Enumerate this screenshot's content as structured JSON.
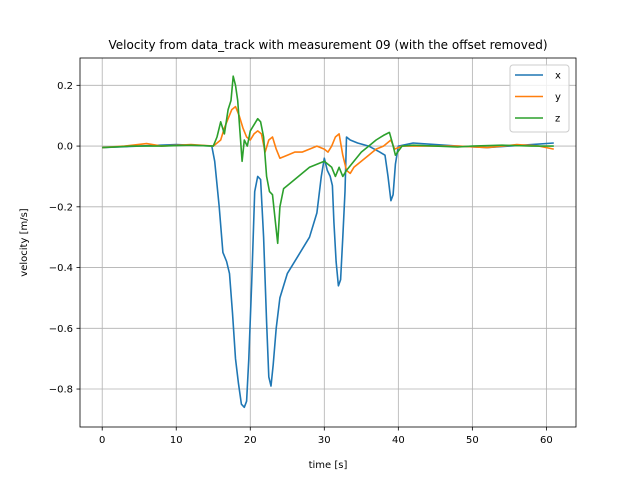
{
  "chart_data": {
    "type": "line",
    "title": "Velocity from data_track with measurement 09 (with the offset removed)",
    "xlabel": "time [s]",
    "ylabel": "velocity [m/s]",
    "xlim": [
      -3,
      64
    ],
    "ylim": [
      -0.925,
      0.29
    ],
    "xticks": [
      0,
      10,
      20,
      30,
      40,
      50,
      60
    ],
    "yticks": [
      -0.8,
      -0.6,
      -0.4,
      -0.2,
      0.0,
      0.2
    ],
    "xtick_labels": [
      "0",
      "10",
      "20",
      "30",
      "40",
      "50",
      "60"
    ],
    "ytick_labels": [
      "−0.8",
      "−0.6",
      "−0.4",
      "−0.2",
      "0.0",
      "0.2"
    ],
    "grid": true,
    "legend_position": "top-right",
    "series": [
      {
        "name": "x",
        "color": "#1f77b4",
        "points": [
          [
            0,
            -0.005
          ],
          [
            5,
            0.0
          ],
          [
            10,
            0.005
          ],
          [
            14.8,
            0.0
          ],
          [
            15.2,
            -0.05
          ],
          [
            15.8,
            -0.2
          ],
          [
            16.3,
            -0.35
          ],
          [
            16.8,
            -0.38
          ],
          [
            17.2,
            -0.42
          ],
          [
            17.6,
            -0.55
          ],
          [
            18.0,
            -0.7
          ],
          [
            18.4,
            -0.78
          ],
          [
            18.8,
            -0.85
          ],
          [
            19.2,
            -0.86
          ],
          [
            19.5,
            -0.84
          ],
          [
            19.8,
            -0.7
          ],
          [
            20.2,
            -0.45
          ],
          [
            20.6,
            -0.15
          ],
          [
            21.0,
            -0.1
          ],
          [
            21.4,
            -0.11
          ],
          [
            21.8,
            -0.3
          ],
          [
            22.2,
            -0.58
          ],
          [
            22.5,
            -0.76
          ],
          [
            22.8,
            -0.79
          ],
          [
            23.1,
            -0.72
          ],
          [
            23.5,
            -0.6
          ],
          [
            24.0,
            -0.5
          ],
          [
            25.0,
            -0.42
          ],
          [
            26.5,
            -0.36
          ],
          [
            28.0,
            -0.3
          ],
          [
            29.0,
            -0.22
          ],
          [
            29.6,
            -0.1
          ],
          [
            30.0,
            -0.04
          ],
          [
            30.4,
            -0.08
          ],
          [
            30.8,
            -0.1
          ],
          [
            31.1,
            -0.13
          ],
          [
            31.3,
            -0.25
          ],
          [
            31.6,
            -0.38
          ],
          [
            31.9,
            -0.46
          ],
          [
            32.2,
            -0.44
          ],
          [
            32.5,
            -0.3
          ],
          [
            32.8,
            -0.15
          ],
          [
            33.0,
            0.03
          ],
          [
            33.5,
            0.02
          ],
          [
            34.5,
            0.01
          ],
          [
            36.0,
            0.0
          ],
          [
            37.5,
            -0.02
          ],
          [
            38.2,
            -0.03
          ],
          [
            38.6,
            -0.1
          ],
          [
            39.0,
            -0.18
          ],
          [
            39.3,
            -0.16
          ],
          [
            39.6,
            -0.06
          ],
          [
            40.0,
            0.0
          ],
          [
            42.0,
            0.01
          ],
          [
            45.0,
            0.005
          ],
          [
            48.0,
            0.0
          ],
          [
            52.0,
            -0.005
          ],
          [
            55.0,
            0.0
          ],
          [
            58.0,
            0.005
          ],
          [
            61.0,
            0.01
          ]
        ]
      },
      {
        "name": "y",
        "color": "#ff7f0e",
        "points": [
          [
            0,
            -0.005
          ],
          [
            3,
            0.0
          ],
          [
            6,
            0.008
          ],
          [
            8,
            0.0
          ],
          [
            12,
            0.005
          ],
          [
            15,
            0.0
          ],
          [
            16,
            0.02
          ],
          [
            16.5,
            0.06
          ],
          [
            17.0,
            0.09
          ],
          [
            17.5,
            0.12
          ],
          [
            18.0,
            0.13
          ],
          [
            18.5,
            0.1
          ],
          [
            19.0,
            0.06
          ],
          [
            19.5,
            0.03
          ],
          [
            20.0,
            0.02
          ],
          [
            20.5,
            0.04
          ],
          [
            21.0,
            0.05
          ],
          [
            21.5,
            0.04
          ],
          [
            22.0,
            -0.02
          ],
          [
            22.5,
            0.02
          ],
          [
            23.0,
            0.03
          ],
          [
            23.5,
            -0.01
          ],
          [
            24.0,
            -0.04
          ],
          [
            25.0,
            -0.03
          ],
          [
            26.0,
            -0.02
          ],
          [
            27.0,
            -0.02
          ],
          [
            28.0,
            -0.01
          ],
          [
            29.0,
            0.0
          ],
          [
            30.0,
            -0.01
          ],
          [
            30.5,
            -0.02
          ],
          [
            31.0,
            0.0
          ],
          [
            31.5,
            0.03
          ],
          [
            32.0,
            0.04
          ],
          [
            32.5,
            -0.03
          ],
          [
            33.0,
            -0.08
          ],
          [
            33.5,
            -0.09
          ],
          [
            34.0,
            -0.07
          ],
          [
            35.0,
            -0.05
          ],
          [
            36.0,
            -0.03
          ],
          [
            37.0,
            -0.01
          ],
          [
            38.0,
            0.0
          ],
          [
            39.0,
            0.02
          ],
          [
            39.5,
            -0.01
          ],
          [
            40.5,
            0.0
          ],
          [
            44,
            0.0
          ],
          [
            48,
            0.0
          ],
          [
            52,
            -0.005
          ],
          [
            56,
            0.005
          ],
          [
            59,
            0.0
          ],
          [
            61,
            -0.01
          ]
        ]
      },
      {
        "name": "z",
        "color": "#2ca02c",
        "points": [
          [
            0,
            -0.005
          ],
          [
            4,
            0.0
          ],
          [
            8,
            0.0
          ],
          [
            12,
            0.003
          ],
          [
            15,
            0.0
          ],
          [
            15.5,
            0.03
          ],
          [
            16.0,
            0.08
          ],
          [
            16.5,
            0.04
          ],
          [
            17.0,
            0.12
          ],
          [
            17.4,
            0.15
          ],
          [
            17.7,
            0.23
          ],
          [
            18.0,
            0.2
          ],
          [
            18.3,
            0.15
          ],
          [
            18.6,
            0.05
          ],
          [
            18.9,
            -0.05
          ],
          [
            19.2,
            0.02
          ],
          [
            19.6,
            0.0
          ],
          [
            20.0,
            0.05
          ],
          [
            20.5,
            0.07
          ],
          [
            21.0,
            0.09
          ],
          [
            21.4,
            0.08
          ],
          [
            21.8,
            0.03
          ],
          [
            22.2,
            -0.1
          ],
          [
            22.6,
            -0.15
          ],
          [
            23.0,
            -0.16
          ],
          [
            23.4,
            -0.25
          ],
          [
            23.7,
            -0.32
          ],
          [
            24.0,
            -0.2
          ],
          [
            24.5,
            -0.14
          ],
          [
            25.0,
            -0.13
          ],
          [
            26.0,
            -0.11
          ],
          [
            27.0,
            -0.09
          ],
          [
            28.0,
            -0.07
          ],
          [
            29.0,
            -0.06
          ],
          [
            30.0,
            -0.05
          ],
          [
            31.0,
            -0.07
          ],
          [
            31.5,
            -0.1
          ],
          [
            32.0,
            -0.07
          ],
          [
            32.5,
            -0.1
          ],
          [
            33.0,
            -0.08
          ],
          [
            34.0,
            -0.05
          ],
          [
            35.0,
            -0.02
          ],
          [
            36.0,
            0.0
          ],
          [
            37.0,
            0.02
          ],
          [
            38.0,
            0.035
          ],
          [
            38.8,
            0.045
          ],
          [
            39.2,
            0.01
          ],
          [
            39.6,
            -0.03
          ],
          [
            40.5,
            0.0
          ],
          [
            42,
            0.003
          ],
          [
            45,
            0.0
          ],
          [
            48,
            -0.003
          ],
          [
            50,
            0.0
          ],
          [
            54,
            0.003
          ],
          [
            58,
            0.0
          ],
          [
            61,
            0.0
          ]
        ]
      }
    ]
  }
}
